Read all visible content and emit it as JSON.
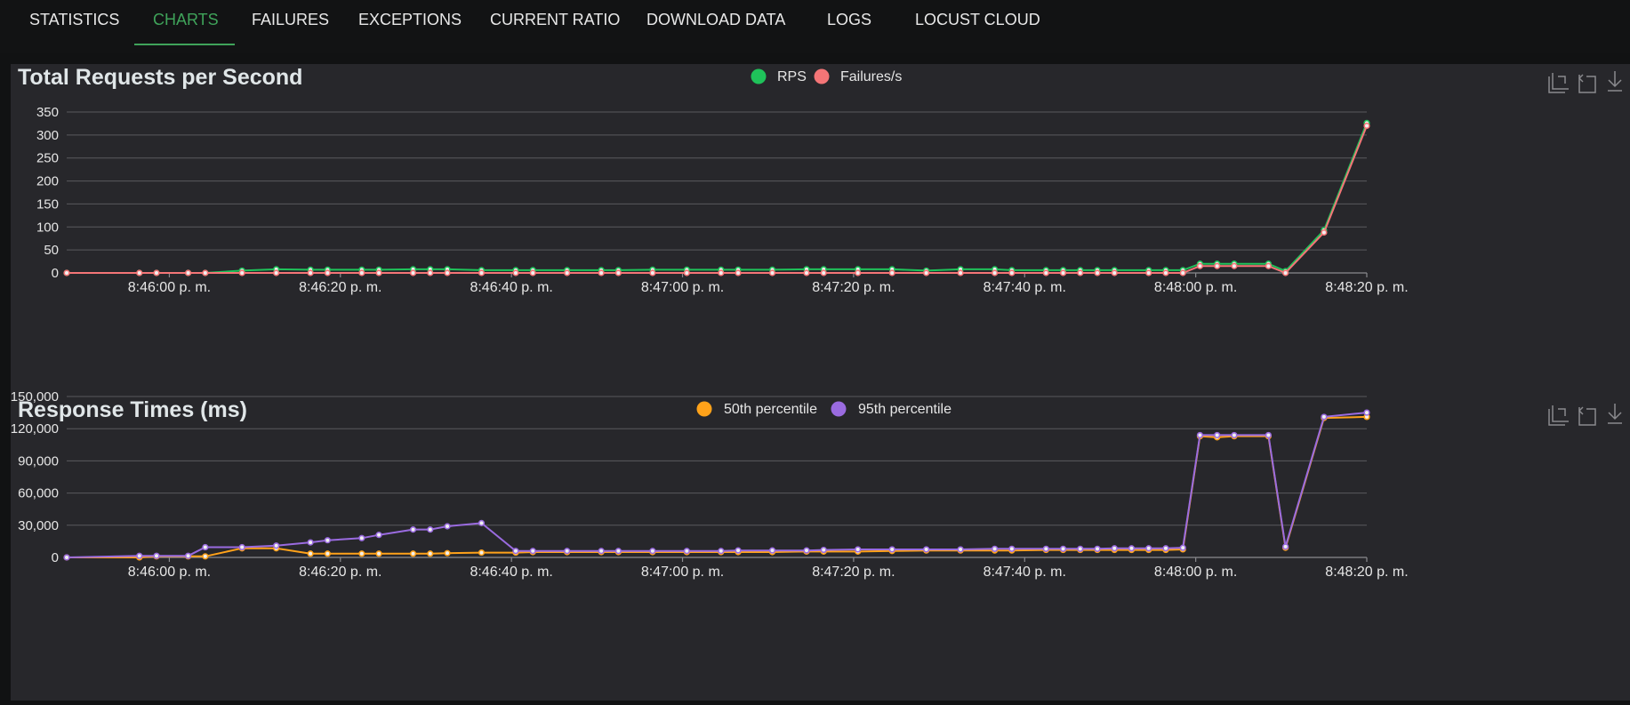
{
  "nav": {
    "tabs": [
      {
        "label": "STATISTICS"
      },
      {
        "label": "CHARTS"
      },
      {
        "label": "FAILURES"
      },
      {
        "label": "EXCEPTIONS"
      },
      {
        "label": "CURRENT RATIO"
      },
      {
        "label": "DOWNLOAD DATA"
      },
      {
        "label": "LOGS"
      },
      {
        "label": "LOCUST CLOUD"
      }
    ],
    "active": "CHARTS"
  },
  "chart_data": [
    {
      "type": "line",
      "title": "Total Requests per Second",
      "xlabel": "",
      "ylabel": "",
      "ylim": [
        0,
        350
      ],
      "yticks": [
        "0",
        "50",
        "100",
        "150",
        "200",
        "250",
        "300",
        "350"
      ],
      "x_tick_labels": [
        "8:46:00 p. m.",
        "8:46:20 p. m.",
        "8:46:40 p. m.",
        "8:47:00 p. m.",
        "8:47:20 p. m.",
        "8:47:40 p. m.",
        "8:48:00 p. m.",
        "8:48:20 p. m."
      ],
      "x_tick_seconds": [
        0,
        20,
        40,
        60,
        80,
        100,
        120,
        140
      ],
      "xlim_seconds": [
        -12,
        140
      ],
      "legend_position": "top-center",
      "grid": true,
      "series": [
        {
          "name": "RPS",
          "color": "#1fc25a",
          "x": [
            -12,
            -3.5,
            -1.5,
            2.2,
            4.2,
            8.5,
            12.5,
            16.5,
            18.5,
            22.5,
            24.5,
            28.5,
            30.5,
            32.5,
            36.5,
            40.5,
            42.5,
            46.5,
            50.5,
            52.5,
            56.5,
            60.5,
            64.5,
            66.5,
            70.5,
            74.5,
            76.5,
            80.5,
            84.5,
            88.5,
            92.5,
            96.5,
            98.5,
            102.5,
            104.5,
            106.5,
            108.5,
            110.5,
            114.5,
            116.5,
            118.5,
            120.5,
            122.5,
            124.5,
            128.5,
            130.5,
            135,
            140
          ],
          "y": [
            0,
            0,
            0,
            0,
            0,
            5,
            8,
            7,
            7,
            7,
            7,
            8,
            8,
            8,
            6,
            6,
            6,
            6,
            6,
            6,
            7,
            7,
            7,
            7,
            7,
            8,
            8,
            8,
            8,
            5,
            8,
            8,
            6,
            6,
            6,
            6,
            6,
            6,
            6,
            6,
            6,
            20,
            20,
            20,
            20,
            4,
            93,
            326
          ]
        },
        {
          "name": "Failures/s",
          "color": "#f47577",
          "x": [
            -12,
            -3.5,
            -1.5,
            2.2,
            4.2,
            8.5,
            12.5,
            16.5,
            18.5,
            22.5,
            24.5,
            28.5,
            30.5,
            32.5,
            36.5,
            40.5,
            42.5,
            46.5,
            50.5,
            52.5,
            56.5,
            60.5,
            64.5,
            66.5,
            70.5,
            74.5,
            76.5,
            80.5,
            84.5,
            88.5,
            92.5,
            96.5,
            98.5,
            102.5,
            104.5,
            106.5,
            108.5,
            110.5,
            114.5,
            116.5,
            118.5,
            120.5,
            122.5,
            124.5,
            128.5,
            130.5,
            135,
            140
          ],
          "y": [
            0,
            0,
            0,
            0,
            0,
            0,
            0,
            0,
            0,
            0,
            0,
            0,
            0,
            0,
            0,
            0,
            0,
            0,
            0,
            0,
            0,
            0,
            0,
            0,
            0,
            0,
            0,
            0,
            0,
            0,
            0,
            0,
            0,
            0,
            0,
            0,
            0,
            0,
            0,
            0,
            0,
            15,
            15,
            15,
            15,
            0,
            88,
            320
          ]
        }
      ]
    },
    {
      "type": "line",
      "title": "Response Times (ms)",
      "xlabel": "",
      "ylabel": "",
      "ylim": [
        0,
        150000
      ],
      "yticks": [
        "0",
        "30,000",
        "60,000",
        "90,000",
        "120,000",
        "150,000"
      ],
      "x_tick_labels": [
        "8:46:00 p. m.",
        "8:46:20 p. m.",
        "8:46:40 p. m.",
        "8:47:00 p. m.",
        "8:47:20 p. m.",
        "8:47:40 p. m.",
        "8:48:00 p. m.",
        "8:48:20 p. m."
      ],
      "x_tick_seconds": [
        0,
        20,
        40,
        60,
        80,
        100,
        120,
        140
      ],
      "xlim_seconds": [
        -12,
        140
      ],
      "legend_position": "top-center",
      "grid": true,
      "series": [
        {
          "name": "50th percentile",
          "color": "#ffa21a",
          "x": [
            -12,
            -3.5,
            -1.5,
            2.2,
            4.2,
            8.5,
            12.5,
            16.5,
            18.5,
            22.5,
            24.5,
            28.5,
            30.5,
            32.5,
            36.5,
            40.5,
            42.5,
            46.5,
            50.5,
            52.5,
            56.5,
            60.5,
            64.5,
            66.5,
            70.5,
            74.5,
            76.5,
            80.5,
            84.5,
            88.5,
            92.5,
            96.5,
            98.5,
            102.5,
            104.5,
            106.5,
            108.5,
            110.5,
            112.5,
            114.5,
            116.5,
            118.5,
            120.5,
            122.5,
            124.5,
            128.5,
            130.5,
            135,
            140
          ],
          "y": [
            0,
            0,
            1000,
            1000,
            1000,
            8500,
            8500,
            3500,
            3500,
            3500,
            3500,
            3500,
            3500,
            4000,
            4500,
            4500,
            5000,
            5000,
            5000,
            5000,
            5000,
            5000,
            5000,
            5000,
            5000,
            5500,
            5500,
            5500,
            6000,
            6500,
            6500,
            6500,
            6500,
            7000,
            7000,
            7000,
            7000,
            7000,
            7000,
            7000,
            7000,
            7500,
            113000,
            112000,
            113000,
            113000,
            9000,
            130000,
            131000
          ]
        },
        {
          "name": "95th percentile",
          "color": "#9a6be0",
          "x": [
            -12,
            -3.5,
            -1.5,
            2.2,
            4.2,
            8.5,
            12.5,
            16.5,
            18.5,
            22.5,
            24.5,
            28.5,
            30.5,
            32.5,
            36.5,
            40.5,
            42.5,
            46.5,
            50.5,
            52.5,
            56.5,
            60.5,
            64.5,
            66.5,
            70.5,
            74.5,
            76.5,
            80.5,
            84.5,
            88.5,
            92.5,
            96.5,
            98.5,
            102.5,
            104.5,
            106.5,
            108.5,
            110.5,
            112.5,
            114.5,
            116.5,
            118.5,
            120.5,
            122.5,
            124.5,
            128.5,
            130.5,
            135,
            140
          ],
          "y": [
            0,
            1500,
            1500,
            1500,
            9500,
            9500,
            11000,
            14000,
            16000,
            18000,
            21000,
            26000,
            26000,
            29000,
            32000,
            6000,
            6000,
            6000,
            6000,
            6000,
            6000,
            6000,
            6000,
            6500,
            6500,
            6500,
            7000,
            7500,
            7500,
            7500,
            7500,
            8000,
            8000,
            8000,
            8000,
            8000,
            8000,
            8500,
            8500,
            8500,
            8500,
            9000,
            114000,
            114000,
            114000,
            114000,
            10000,
            131000,
            135000
          ]
        }
      ]
    }
  ]
}
